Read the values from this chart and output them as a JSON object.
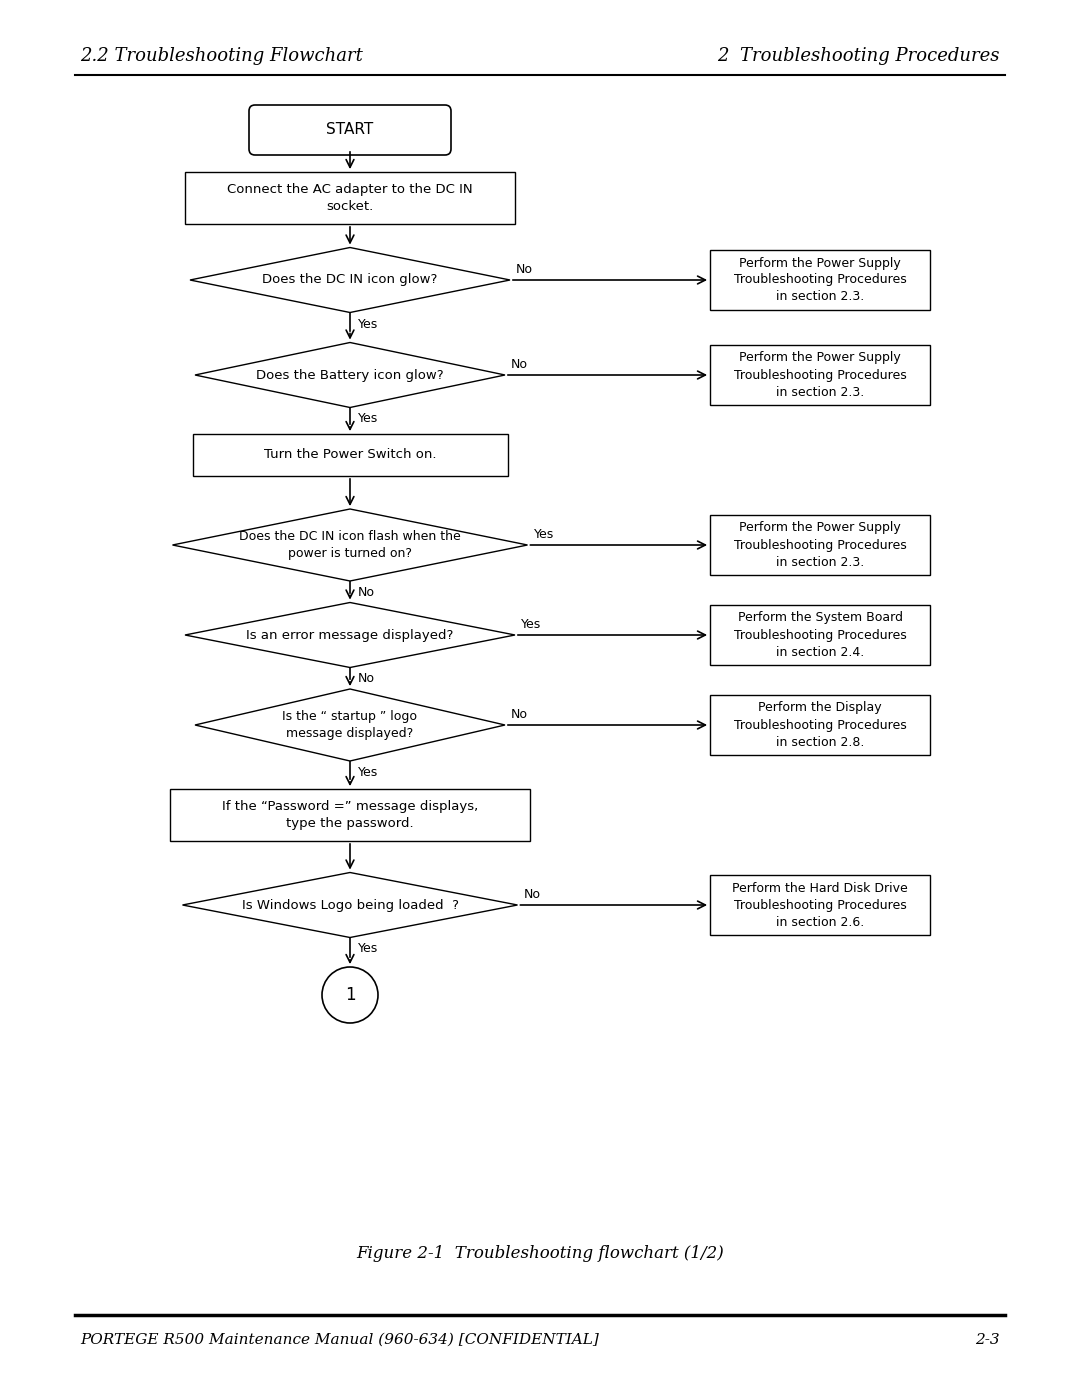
{
  "header_left": "2.2 Troubleshooting Flowchart",
  "header_right": "2  Troubleshooting Procedures",
  "footer_left": "PORTEGE R500 Maintenance Manual (960-634) [CONFIDENTIAL]",
  "footer_right": "2-3",
  "figure_caption": "Figure 2-1  Troubleshooting flowchart (1/2)",
  "bg_color": "#ffffff",
  "line_color": "#000000",
  "text_color": "#000000",
  "start_text": "START",
  "box1_text": "Connect the AC adapter to the DC IN\nsocket.",
  "dia1_text": "Does the DC IN icon glow?",
  "dia2_text": "Does the Battery icon glow?",
  "box2_text": "Turn the Power Switch on.",
  "dia3_text": "Does the DC IN icon flash when the\npower is turned on?",
  "dia4_text": "Is an error message displayed?",
  "dia5_text": "Is the “ startup ” logo\nmessage displayed?",
  "box3_text": "If the “Password =” message displays,\ntype the password.",
  "dia6_text": "Is Windows Logo being loaded  ?",
  "circle_text": "1",
  "sb1_text": "Perform the Power Supply\nTroubleshooting Procedures\nin section 2.3.",
  "sb2_text": "Perform the Power Supply\nTroubleshooting Procedures\nin section 2.3.",
  "sb3_text": "Perform the Power Supply\nTroubleshooting Procedures\nin section 2.3.",
  "sb4_text": "Perform the System Board\nTroubleshooting Procedures\nin section 2.4.",
  "sb5_text": "Perform the Display\nTroubleshooting Procedures\nin section 2.8.",
  "sb6_text": "Perform the Hard Disk Drive\nTroubleshooting Procedures\nin section 2.6."
}
